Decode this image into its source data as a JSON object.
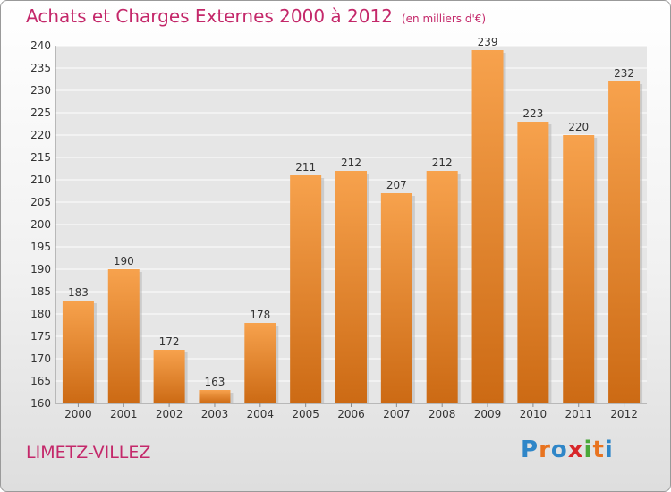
{
  "chart_data": {
    "type": "bar",
    "title": "Achats et Charges Externes 2000 à 2012",
    "subtitle": "(en milliers d'€)",
    "categories": [
      "2000",
      "2001",
      "2002",
      "2003",
      "2004",
      "2005",
      "2006",
      "2007",
      "2008",
      "2009",
      "2010",
      "2011",
      "2012"
    ],
    "values": [
      183,
      190,
      172,
      163,
      178,
      211,
      212,
      207,
      212,
      239,
      223,
      220,
      232
    ],
    "ylim": [
      160,
      240
    ],
    "yticks": [
      160,
      165,
      170,
      175,
      180,
      185,
      190,
      195,
      200,
      205,
      210,
      215,
      220,
      225,
      230,
      235,
      240
    ],
    "grid": true,
    "legend": "none",
    "colors": {
      "bar_top": "#f7a24d",
      "bar_bottom": "#cc6a14",
      "title": "#c4286a"
    }
  },
  "location": "LIMETZ-VILLEZ",
  "logo": {
    "letters": [
      "P",
      "r",
      "o",
      "x",
      "i",
      "t",
      "i"
    ],
    "colors": [
      "#2f86c8",
      "#e8731f",
      "#2f86c8",
      "#d8262a",
      "#4aa83a",
      "#e8731f",
      "#2f86c8"
    ]
  }
}
